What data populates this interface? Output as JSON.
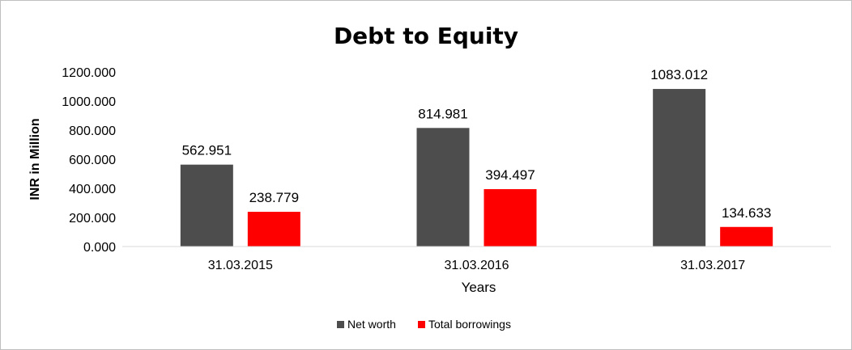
{
  "chart_data": {
    "type": "bar",
    "title": "Debt to Equity",
    "xlabel": "Years",
    "ylabel": "INR in Million",
    "categories": [
      "31.03.2015",
      "31.03.2016",
      "31.03.2017"
    ],
    "series": [
      {
        "name": "Net worth",
        "values": [
          562.951,
          814.981,
          1083.012
        ],
        "color": "#4d4d4d"
      },
      {
        "name": "Total borrowings",
        "values": [
          238.779,
          394.497,
          134.633
        ],
        "color": "#ff0000"
      }
    ],
    "data_labels": [
      [
        "562.951",
        "814.981",
        "1083.012"
      ],
      [
        "238.779",
        "394.497",
        "134.633"
      ]
    ],
    "yticks": [
      0,
      200,
      400,
      600,
      800,
      1000,
      1200
    ],
    "ytick_labels": [
      "0.000",
      "200.000",
      "400.000",
      "600.000",
      "800.000",
      "1000.000",
      "1200.000"
    ],
    "ylim": [
      0,
      1200
    ],
    "grid": false,
    "legend": "bottom-center"
  }
}
